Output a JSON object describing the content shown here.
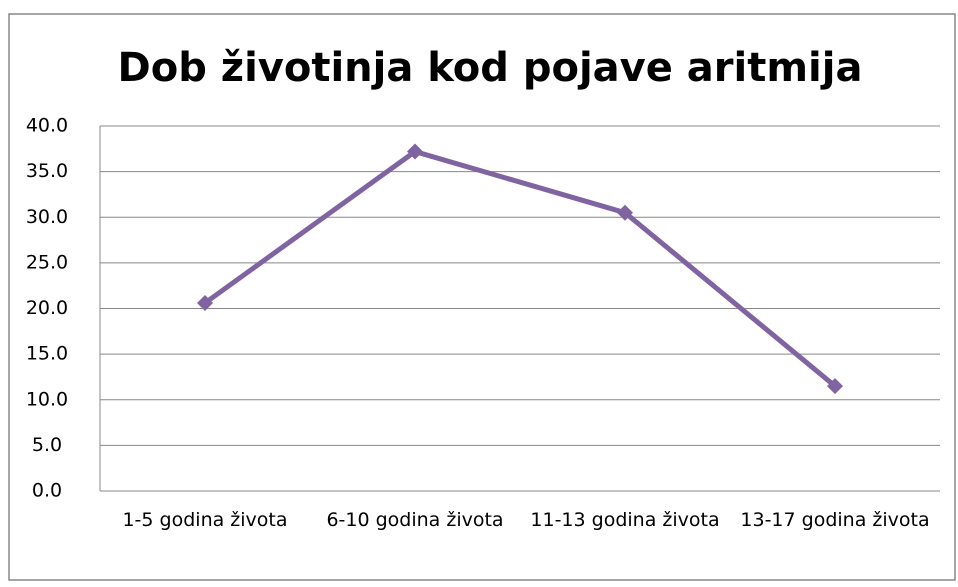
{
  "chart_data": {
    "type": "line",
    "title": "Dob životinja kod pojave aritmija",
    "categories": [
      "1-5 godina života",
      "6-10 godina života",
      "11-13 godina života",
      "13-17 godina života"
    ],
    "series": [
      {
        "name": "Dob životinja kod pojave aritmija",
        "color": "#8064a2",
        "values": [
          20.6,
          37.2,
          30.5,
          11.5
        ]
      }
    ],
    "ylim": [
      0,
      40
    ],
    "yticks": [
      {
        "value": 0,
        "label": "0.0"
      },
      {
        "value": 5,
        "label": "5.0"
      },
      {
        "value": 10,
        "label": "10.0"
      },
      {
        "value": 15,
        "label": "15.0"
      },
      {
        "value": 20,
        "label": "20.0"
      },
      {
        "value": 25,
        "label": "25.0"
      },
      {
        "value": 30,
        "label": "30.0"
      },
      {
        "value": 35,
        "label": "35.0"
      },
      {
        "value": 40,
        "label": "40.0"
      }
    ],
    "grid": true,
    "legend": false
  }
}
